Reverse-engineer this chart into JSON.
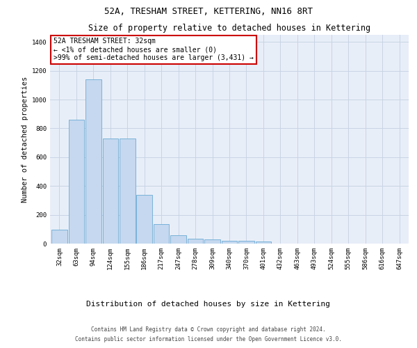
{
  "title": "52A, TRESHAM STREET, KETTERING, NN16 8RT",
  "subtitle": "Size of property relative to detached houses in Kettering",
  "xlabel": "Distribution of detached houses by size in Kettering",
  "ylabel": "Number of detached properties",
  "categories": [
    "32sqm",
    "63sqm",
    "94sqm",
    "124sqm",
    "155sqm",
    "186sqm",
    "217sqm",
    "247sqm",
    "278sqm",
    "309sqm",
    "340sqm",
    "370sqm",
    "401sqm",
    "432sqm",
    "463sqm",
    "493sqm",
    "524sqm",
    "555sqm",
    "586sqm",
    "616sqm",
    "647sqm"
  ],
  "values": [
    95,
    860,
    1140,
    730,
    730,
    340,
    135,
    60,
    35,
    28,
    20,
    20,
    15,
    0,
    0,
    0,
    0,
    0,
    0,
    0,
    0
  ],
  "bar_color": "#c5d8ef",
  "bar_edge_color": "#6aaad4",
  "annotation_text": "52A TRESHAM STREET: 32sqm\n← <1% of detached houses are smaller (0)\n>99% of semi-detached houses are larger (3,431) →",
  "annotation_box_color": "#cc0000",
  "ylim": [
    0,
    1450
  ],
  "yticks": [
    0,
    200,
    400,
    600,
    800,
    1000,
    1200,
    1400
  ],
  "grid_color": "#c8d4e4",
  "background_color": "#e8eef8",
  "footer_line1": "Contains HM Land Registry data © Crown copyright and database right 2024.",
  "footer_line2": "Contains public sector information licensed under the Open Government Licence v3.0.",
  "title_fontsize": 9,
  "subtitle_fontsize": 8.5,
  "ylabel_fontsize": 7.5,
  "xlabel_fontsize": 8,
  "tick_fontsize": 6.5,
  "annotation_fontsize": 7,
  "footer_fontsize": 5.5
}
